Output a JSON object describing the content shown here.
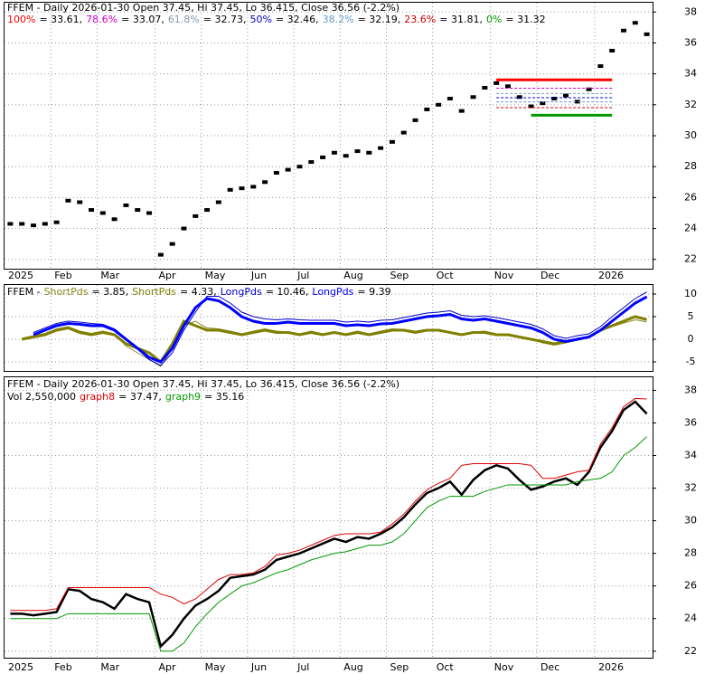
{
  "chart_data": [
    {
      "type": "price",
      "title": "FFEM - Daily 2026-01-30 Open 37.45, Hi 37.45, Lo 36.415, Close 36.56 (-2.2%)",
      "categories": [
        "2025",
        null,
        null,
        null,
        "Feb",
        null,
        null,
        null,
        "Mar",
        null,
        null,
        null,
        null,
        "Apr",
        null,
        null,
        null,
        "May",
        null,
        null,
        null,
        "Jun",
        null,
        null,
        null,
        "Jul",
        null,
        null,
        null,
        "Aug",
        null,
        null,
        null,
        "Sep",
        null,
        null,
        null,
        "Oct",
        null,
        null,
        null,
        null,
        "Nov",
        null,
        null,
        null,
        "Dec",
        null,
        null,
        null,
        null,
        "2026",
        null,
        null,
        null,
        null
      ],
      "series": [
        {
          "color": "#000000",
          "values": [
            24.3,
            24.3,
            24.2,
            24.3,
            24.4,
            25.8,
            25.7,
            25.2,
            25.0,
            24.6,
            25.5,
            25.2,
            25.0,
            22.3,
            23.0,
            24.0,
            24.8,
            25.2,
            25.7,
            26.5,
            26.6,
            26.7,
            27.0,
            27.6,
            27.8,
            28.0,
            28.3,
            28.6,
            28.9,
            28.7,
            29.0,
            28.9,
            29.2,
            29.6,
            30.2,
            31.0,
            31.7,
            32.0,
            32.4,
            31.6,
            32.5,
            33.1,
            33.4,
            33.2,
            32.5,
            31.9,
            32.1,
            32.4,
            32.6,
            32.2,
            33.0,
            34.5,
            35.5,
            36.8,
            37.3,
            36.56
          ]
        }
      ],
      "levels": [
        {
          "name": "100%",
          "color": "#ff0000",
          "value": 33.61,
          "value_label": "= 33.61,"
        },
        {
          "name": "78.6%",
          "color": "#cc00cc",
          "value": 33.07,
          "value_label": "= 33.07,"
        },
        {
          "name": "61.8%",
          "color": "#8899aa",
          "value": 32.73,
          "value_label": "= 32.73,"
        },
        {
          "name": "50%",
          "color": "#0000cc",
          "value": 32.46,
          "value_label": "= 32.46,"
        },
        {
          "name": "38.2%",
          "color": "#6699cc",
          "value": 32.19,
          "value_label": "= 32.19,"
        },
        {
          "name": "23.6%",
          "color": "#cc0000",
          "value": 31.81,
          "value_label": "= 31.81,"
        },
        {
          "name": "0%",
          "color": "#009900",
          "value": 31.32,
          "value_label": "= 31.32"
        }
      ],
      "ylim": [
        21.4,
        38.6
      ],
      "yticks": [
        22,
        24,
        26,
        28,
        30,
        32,
        34,
        36,
        38
      ],
      "grid": true
    },
    {
      "type": "line",
      "title": "FFEM -",
      "series": [
        {
          "name": "ShortPds",
          "color": "#8a8a20",
          "value_label": "= 3.85,",
          "width": 1,
          "values": [
            null,
            0.2,
            0.8,
            1.3,
            2.3,
            2.8,
            1.8,
            1.3,
            1.8,
            1.2,
            -1.5,
            -3,
            -4.5,
            -6,
            -2,
            3,
            4,
            2.5,
            2.3,
            1.8,
            1.2,
            1.8,
            2.3,
            1.8,
            1.6,
            1.2,
            1.8,
            1.2,
            1.7,
            1.2,
            1.8,
            1.2,
            1.8,
            2.3,
            2.2,
            1.8,
            2.2,
            2.2,
            1.6,
            1,
            1.6,
            1.8,
            1.2,
            1.2,
            0.6,
            0,
            -0.8,
            -1.3,
            -0.8,
            -0.2,
            0.4,
            1.8,
            2.8,
            3.6,
            4.3,
            3.85
          ]
        },
        {
          "name": "ShortPds",
          "color": "#808000",
          "value_label": "= 4.33,",
          "width": 3,
          "values": [
            null,
            0,
            0.5,
            1,
            2,
            2.5,
            1.5,
            1,
            1.5,
            1,
            -1,
            -2,
            -3,
            -5,
            -1,
            4,
            3,
            2,
            2,
            1.5,
            1,
            1.5,
            2,
            1.5,
            1.5,
            1,
            1.5,
            1,
            1.5,
            1,
            1.5,
            1,
            1.5,
            2,
            2,
            1.5,
            2,
            2,
            1.5,
            1,
            1.5,
            1.5,
            1,
            1,
            0.5,
            0,
            -0.5,
            -1,
            -0.5,
            0,
            0.5,
            2,
            3,
            4,
            5,
            4.33
          ]
        },
        {
          "name": "LongPds",
          "color": "#0000cc",
          "value_label": "= 10.46,",
          "width": 1,
          "values": [
            null,
            null,
            1.5,
            2.5,
            3.5,
            4,
            3.8,
            3.5,
            3.3,
            2.3,
            0.2,
            -2.2,
            -4.5,
            -5.8,
            -3,
            2,
            6,
            9.5,
            9.5,
            8,
            6,
            5,
            4.5,
            4.3,
            4.5,
            4.3,
            4.2,
            4.2,
            4.2,
            3.8,
            4,
            3.8,
            4.2,
            4.3,
            4.8,
            5.3,
            5.8,
            6,
            6.3,
            5.3,
            5,
            5.2,
            4.8,
            4.3,
            3.8,
            3.3,
            2.3,
            0.8,
            0.2,
            0.8,
            1.2,
            2.8,
            5,
            7,
            9,
            10.46
          ]
        },
        {
          "name": "LongPds",
          "color": "#0000ff",
          "value_label": "= 9.39",
          "width": 3,
          "values": [
            null,
            null,
            1,
            2,
            3,
            3.5,
            3.3,
            3,
            3,
            2,
            0,
            -2,
            -4,
            -5,
            -2,
            3,
            7,
            9,
            8.5,
            7,
            5,
            4,
            3.5,
            3.5,
            3.8,
            3.5,
            3.5,
            3.5,
            3.5,
            3,
            3.2,
            3,
            3.4,
            3.5,
            4,
            4.5,
            5,
            5.2,
            5.5,
            4.5,
            4.2,
            4.5,
            4,
            3.5,
            3,
            2.5,
            1.5,
            0,
            -0.5,
            0,
            0.5,
            2,
            4,
            6,
            8,
            9.39
          ]
        }
      ],
      "ylim": [
        -7,
        12
      ],
      "yticks": [
        10,
        5,
        0,
        -5
      ],
      "grid": true
    },
    {
      "type": "line",
      "title": "FFEM - Daily 2026-01-30 Open 37.45, Hi 37.45, Lo 36.415, Close 36.56 (-2.2%)",
      "subtitle": "Vol 2,550,000",
      "series": [
        {
          "name": "graph8",
          "color": "#dd0000",
          "value_label": "= 37.47,",
          "width": 1,
          "values": [
            24.5,
            24.5,
            24.5,
            24.5,
            24.6,
            25.9,
            25.9,
            25.9,
            25.9,
            25.9,
            25.9,
            25.9,
            25.9,
            25.5,
            25.3,
            24.9,
            25.2,
            25.8,
            26.4,
            26.7,
            26.7,
            26.8,
            27.2,
            27.9,
            28.0,
            28.2,
            28.5,
            28.8,
            29.1,
            29.2,
            29.2,
            29.2,
            29.3,
            29.8,
            30.4,
            31.2,
            31.9,
            32.3,
            32.6,
            33.4,
            33.5,
            33.5,
            33.5,
            33.5,
            33.5,
            33.4,
            32.6,
            32.6,
            32.8,
            33.0,
            33.1,
            34.7,
            35.7,
            37.0,
            37.5,
            37.47
          ]
        },
        {
          "name": "graph9",
          "color": "#009900",
          "value_label": "= 35.16",
          "width": 1,
          "values": [
            24.0,
            24.0,
            24.0,
            24.0,
            24.0,
            24.3,
            24.3,
            24.3,
            24.3,
            24.3,
            24.3,
            24.3,
            24.3,
            22.0,
            22.0,
            22.5,
            23.5,
            24.3,
            25.0,
            25.5,
            26.0,
            26.2,
            26.5,
            26.8,
            27.0,
            27.3,
            27.6,
            27.8,
            28.0,
            28.1,
            28.3,
            28.5,
            28.5,
            28.7,
            29.2,
            30.0,
            30.8,
            31.2,
            31.5,
            31.5,
            31.5,
            31.8,
            32.0,
            32.2,
            32.2,
            32.2,
            32.2,
            32.2,
            32.2,
            32.4,
            32.5,
            32.6,
            33.0,
            34.0,
            34.5,
            35.16
          ]
        }
      ],
      "ylim": [
        21.6,
        38.8
      ],
      "yticks": [
        22,
        24,
        26,
        28,
        30,
        32,
        34,
        36,
        38
      ],
      "grid": true
    }
  ]
}
